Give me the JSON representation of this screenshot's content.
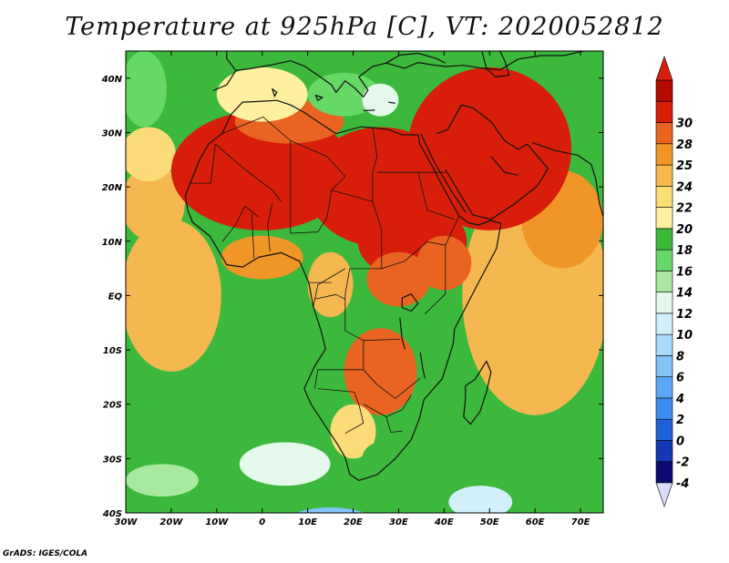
{
  "title": "Temperature at 925hPa [C], VT: 2020052812",
  "credit": "GrADS: IGES/COLA",
  "chart_data": {
    "type": "heatmap",
    "title": "Temperature at 925hPa [C], VT: 2020052812",
    "variable": "Temperature at 925hPa",
    "units": "C",
    "valid_time": "2020052812",
    "xlim": [
      -30,
      75
    ],
    "ylim": [
      -40,
      45
    ],
    "x_ticks": [
      {
        "value": -30,
        "label": "30W"
      },
      {
        "value": -20,
        "label": "20W"
      },
      {
        "value": -10,
        "label": "10W"
      },
      {
        "value": 0,
        "label": "0"
      },
      {
        "value": 10,
        "label": "10E"
      },
      {
        "value": 20,
        "label": "20E"
      },
      {
        "value": 30,
        "label": "30E"
      },
      {
        "value": 40,
        "label": "40E"
      },
      {
        "value": 50,
        "label": "50E"
      },
      {
        "value": 60,
        "label": "60E"
      },
      {
        "value": 70,
        "label": "70E"
      }
    ],
    "y_ticks": [
      {
        "value": 40,
        "label": "40N"
      },
      {
        "value": 30,
        "label": "30N"
      },
      {
        "value": 20,
        "label": "20N"
      },
      {
        "value": 10,
        "label": "10N"
      },
      {
        "value": 0,
        "label": "EQ"
      },
      {
        "value": -10,
        "label": "10S"
      },
      {
        "value": -20,
        "label": "20S"
      },
      {
        "value": -30,
        "label": "30S"
      },
      {
        "value": -40,
        "label": "40S"
      }
    ],
    "colorbar": {
      "labels": [
        "-4",
        "-2",
        "0",
        "2",
        "4",
        "6",
        "8",
        "10",
        "12",
        "14",
        "16",
        "18",
        "20",
        "22",
        "24",
        "25",
        "28",
        "30"
      ],
      "colors": [
        "#0a0a6e",
        "#1238b4",
        "#1f62d8",
        "#3c8cf0",
        "#5aa8f5",
        "#80c4fa",
        "#a8dcfc",
        "#d2f0fc",
        "#e4f8ec",
        "#a8e8a0",
        "#66d866",
        "#3cb83c",
        "#fff0a0",
        "#fbdc78",
        "#f5b850",
        "#f09628",
        "#e86420",
        "#d81e0a",
        "#b40a00"
      ],
      "min_triangle_color": "#dcdcfa",
      "max_triangle_color": "#d81e0a"
    },
    "field": {
      "background": 11,
      "blobs": [
        {
          "lon": -18,
          "lat": -26,
          "rx": 13,
          "ry": 12,
          "level": 11
        },
        {
          "lon": 62,
          "lat": -26,
          "rx": 12,
          "ry": 12,
          "level": 11
        },
        {
          "lon": 40,
          "lat": -24,
          "rx": 25,
          "ry": 6,
          "level": 11
        },
        {
          "lon": -22,
          "lat": -34,
          "rx": 8,
          "ry": 3,
          "level": 9
        },
        {
          "lon": 48,
          "lat": -38,
          "rx": 7,
          "ry": 3,
          "level": 7
        },
        {
          "lon": -20,
          "lat": 0,
          "rx": 11,
          "ry": 14,
          "level": 14
        },
        {
          "lon": -24,
          "lat": 17,
          "rx": 7,
          "ry": 7,
          "level": 14
        },
        {
          "lon": 60,
          "lat": 0,
          "rx": 16,
          "ry": 22,
          "level": 14
        },
        {
          "lon": 66,
          "lat": 14,
          "rx": 9,
          "ry": 9,
          "level": 15
        },
        {
          "lon": 0,
          "lat": 7,
          "rx": 9,
          "ry": 4,
          "level": 15
        },
        {
          "lon": -26,
          "lat": 38,
          "rx": 5,
          "ry": 7,
          "level": 10
        },
        {
          "lon": -25,
          "lat": 26,
          "rx": 6,
          "ry": 5,
          "level": 13
        },
        {
          "lon": 0,
          "lat": 23,
          "rx": 20,
          "ry": 11,
          "level": 17
        },
        {
          "lon": 26,
          "lat": 20,
          "rx": 16,
          "ry": 11,
          "level": 17
        },
        {
          "lon": 50,
          "lat": 27,
          "rx": 18,
          "ry": 15,
          "level": 17
        },
        {
          "lon": 33,
          "lat": 10,
          "rx": 12,
          "ry": 7,
          "level": 17
        },
        {
          "lon": 6,
          "lat": 32,
          "rx": 12,
          "ry": 4,
          "level": 16
        },
        {
          "lon": 30,
          "lat": 3,
          "rx": 7,
          "ry": 5,
          "level": 16
        },
        {
          "lon": 40,
          "lat": 6,
          "rx": 6,
          "ry": 5,
          "level": 16
        },
        {
          "lon": 26,
          "lat": -14,
          "rx": 8,
          "ry": 8,
          "level": 16
        },
        {
          "lon": 15,
          "lat": 2,
          "rx": 5,
          "ry": 6,
          "level": 14
        },
        {
          "lon": 20,
          "lat": -25,
          "rx": 5,
          "ry": 5,
          "level": 13
        },
        {
          "lon": 0,
          "lat": 37,
          "rx": 10,
          "ry": 5,
          "level": 12
        },
        {
          "lon": 18,
          "lat": 37,
          "rx": 8,
          "ry": 4,
          "level": 10
        },
        {
          "lon": 26,
          "lat": 36,
          "rx": 4,
          "ry": 3,
          "level": 8
        },
        {
          "lon": 5,
          "lat": -31,
          "rx": 10,
          "ry": 4,
          "level": 8
        },
        {
          "lon": 15,
          "lat": -42,
          "rx": 10,
          "ry": 3,
          "level": 5
        },
        {
          "lon": 26,
          "lat": -30,
          "rx": 4,
          "ry": 3,
          "level": 11
        }
      ]
    }
  }
}
